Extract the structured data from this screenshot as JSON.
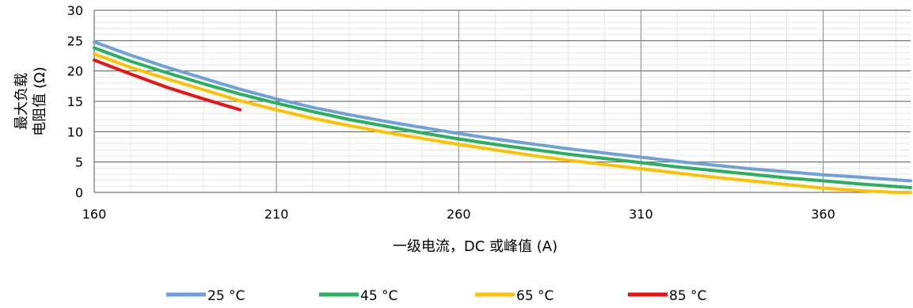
{
  "chart_data": {
    "type": "line",
    "title": "",
    "xlabel": "一级电流，DC 或峰值 (A)",
    "ylabel_lines": [
      "最大负载",
      "电阻值 (Ω)"
    ],
    "xlim": [
      160,
      384
    ],
    "ylim": [
      0,
      30
    ],
    "x_ticks": [
      160,
      210,
      260,
      310,
      360
    ],
    "y_ticks": [
      0,
      5,
      10,
      15,
      20,
      25,
      30
    ],
    "y_minor_step": 1,
    "x_minor_step": 10,
    "grid": true,
    "legend_position": "bottom",
    "series": [
      {
        "name": "25 °C",
        "color": "#70A0D8",
        "x": [
          160,
          170,
          180,
          190,
          200,
          210,
          220,
          230,
          240,
          250,
          260,
          270,
          280,
          290,
          300,
          310,
          320,
          330,
          340,
          350,
          360,
          370,
          384
        ],
        "y": [
          24.8,
          22.6,
          20.6,
          18.8,
          17.0,
          15.4,
          14.0,
          12.8,
          11.7,
          10.7,
          9.7,
          8.8,
          8.0,
          7.2,
          6.5,
          5.8,
          5.1,
          4.5,
          3.9,
          3.4,
          2.9,
          2.5,
          1.9
        ]
      },
      {
        "name": "45 °C",
        "color": "#28B060",
        "x": [
          160,
          170,
          180,
          190,
          200,
          210,
          220,
          230,
          240,
          250,
          260,
          270,
          280,
          290,
          300,
          310,
          320,
          330,
          340,
          350,
          360,
          370,
          384
        ],
        "y": [
          23.8,
          21.6,
          19.7,
          17.9,
          16.2,
          14.7,
          13.3,
          12.0,
          10.9,
          9.8,
          8.8,
          7.9,
          7.1,
          6.3,
          5.6,
          4.9,
          4.2,
          3.6,
          3.0,
          2.4,
          1.9,
          1.4,
          0.8
        ]
      },
      {
        "name": "65 °C",
        "color": "#FFC000",
        "x": [
          160,
          170,
          180,
          190,
          200,
          210,
          220,
          230,
          240,
          250,
          260,
          270,
          280,
          290,
          300,
          310,
          320,
          330,
          340,
          350,
          360,
          370,
          380,
          384
        ],
        "y": [
          22.8,
          20.6,
          18.7,
          16.9,
          15.1,
          13.6,
          12.2,
          11.0,
          9.9,
          8.9,
          7.9,
          7.0,
          6.1,
          5.3,
          4.6,
          3.9,
          3.2,
          2.5,
          1.9,
          1.3,
          0.7,
          0.3,
          0.0,
          0.0
        ]
      },
      {
        "name": "85 °C",
        "color": "#EE1111",
        "x": [
          160,
          170,
          180,
          190,
          200
        ],
        "y": [
          21.8,
          19.5,
          17.3,
          15.4,
          13.6
        ]
      }
    ]
  }
}
